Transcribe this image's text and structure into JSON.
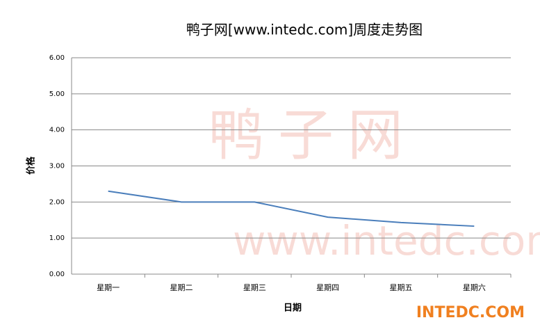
{
  "chart_data": {
    "type": "line",
    "title": "鸭子网[www.intedc.com]周度走势图",
    "x_label": "日期",
    "y_label": "价格",
    "categories": [
      "星期一",
      "星期二",
      "星期三",
      "星期四",
      "星期五",
      "星期六"
    ],
    "series": [
      {
        "name": "价格",
        "color": "#4a7ebb",
        "values": [
          2.3,
          2.0,
          2.0,
          1.58,
          1.43,
          1.33
        ]
      }
    ],
    "ylim": [
      0,
      6
    ],
    "yticks": [
      {
        "value": 0,
        "label": "0.00"
      },
      {
        "value": 1,
        "label": "1.00"
      },
      {
        "value": 2,
        "label": "2.00"
      },
      {
        "value": 3,
        "label": "3.00"
      },
      {
        "value": 4,
        "label": "4.00"
      },
      {
        "value": 5,
        "label": "5.00"
      },
      {
        "value": 6,
        "label": "6.00"
      }
    ],
    "grid": true,
    "watermarks": [
      "鸭子网",
      "www.intedc.com"
    ],
    "logo": "INTEDC.COM"
  }
}
